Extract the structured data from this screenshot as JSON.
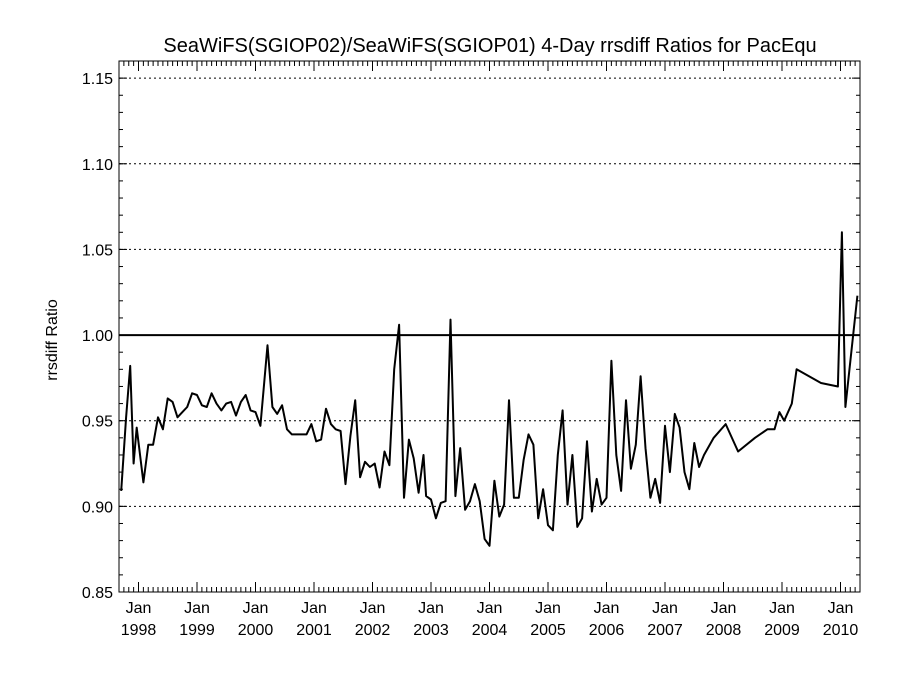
{
  "chart_data": {
    "type": "line",
    "title": "SeaWiFS(SGIOP02)/SeaWiFS(SGIOP01) 4-Day rrsdiff Ratios for PacEqu",
    "xlabel": "",
    "ylabel": "rrsdiff Ratio",
    "ylim": [
      0.85,
      1.16
    ],
    "xlim": [
      "1997-09",
      "2010-05"
    ],
    "yticks": [
      0.85,
      0.9,
      0.95,
      1.0,
      1.05,
      1.1,
      1.15
    ],
    "ytick_labels": [
      "0.85",
      "0.90",
      "0.95",
      "1.00",
      "1.05",
      "1.10",
      "1.15"
    ],
    "xticks": [
      {
        "month": "Jan",
        "year": "1998",
        "date": "1998-01"
      },
      {
        "month": "Jan",
        "year": "1999",
        "date": "1999-01"
      },
      {
        "month": "Jan",
        "year": "2000",
        "date": "2000-01"
      },
      {
        "month": "Jan",
        "year": "2001",
        "date": "2001-01"
      },
      {
        "month": "Jan",
        "year": "2002",
        "date": "2002-01"
      },
      {
        "month": "Jan",
        "year": "2003",
        "date": "2003-01"
      },
      {
        "month": "Jan",
        "year": "2004",
        "date": "2004-01"
      },
      {
        "month": "Jan",
        "year": "2005",
        "date": "2005-01"
      },
      {
        "month": "Jan",
        "year": "2006",
        "date": "2006-01"
      },
      {
        "month": "Jan",
        "year": "2007",
        "date": "2007-01"
      },
      {
        "month": "Jan",
        "year": "2008",
        "date": "2008-01"
      },
      {
        "month": "Jan",
        "year": "2009",
        "date": "2009-01"
      },
      {
        "month": "Jan",
        "year": "2010",
        "date": "2010-01"
      }
    ],
    "reference_line": 1.0,
    "grid": "horizontal dotted",
    "series": [
      {
        "data": [
          [
            "1997-09-15",
            0.909
          ],
          [
            "1997-10-15",
            0.952
          ],
          [
            "1997-11-10",
            0.982
          ],
          [
            "1997-12-01",
            0.925
          ],
          [
            "1997-12-20",
            0.946
          ],
          [
            "1998-02-01",
            0.914
          ],
          [
            "1998-03-01",
            0.936
          ],
          [
            "1998-04-01",
            0.936
          ],
          [
            "1998-05-01",
            0.952
          ],
          [
            "1998-06-01",
            0.945
          ],
          [
            "1998-07-01",
            0.963
          ],
          [
            "1998-08-01",
            0.961
          ],
          [
            "1998-09-01",
            0.952
          ],
          [
            "1998-10-01",
            0.955
          ],
          [
            "1998-11-01",
            0.958
          ],
          [
            "1998-12-01",
            0.966
          ],
          [
            "1999-01-01",
            0.965
          ],
          [
            "1999-02-01",
            0.959
          ],
          [
            "1999-03-01",
            0.958
          ],
          [
            "1999-04-01",
            0.966
          ],
          [
            "1999-05-01",
            0.96
          ],
          [
            "1999-06-01",
            0.956
          ],
          [
            "1999-07-01",
            0.96
          ],
          [
            "1999-08-01",
            0.961
          ],
          [
            "1999-09-01",
            0.953
          ],
          [
            "1999-10-01",
            0.961
          ],
          [
            "1999-11-01",
            0.965
          ],
          [
            "1999-12-01",
            0.956
          ],
          [
            "2000-01-01",
            0.955
          ],
          [
            "2000-02-01",
            0.947
          ],
          [
            "2000-03-15",
            0.994
          ],
          [
            "2000-04-15",
            0.958
          ],
          [
            "2000-05-15",
            0.954
          ],
          [
            "2000-06-15",
            0.959
          ],
          [
            "2000-07-15",
            0.945
          ],
          [
            "2000-08-15",
            0.942
          ],
          [
            "2000-10-01",
            0.942
          ],
          [
            "2000-11-15",
            0.942
          ],
          [
            "2000-12-15",
            0.948
          ],
          [
            "2001-01-15",
            0.938
          ],
          [
            "2001-02-15",
            0.939
          ],
          [
            "2001-03-15",
            0.957
          ],
          [
            "2001-04-15",
            0.948
          ],
          [
            "2001-05-15",
            0.945
          ],
          [
            "2001-06-15",
            0.944
          ],
          [
            "2001-07-15",
            0.913
          ],
          [
            "2001-08-15",
            0.941
          ],
          [
            "2001-09-15",
            0.962
          ],
          [
            "2001-10-15",
            0.917
          ],
          [
            "2001-11-15",
            0.926
          ],
          [
            "2001-12-15",
            0.923
          ],
          [
            "2002-01-15",
            0.925
          ],
          [
            "2002-02-15",
            0.911
          ],
          [
            "2002-03-15",
            0.932
          ],
          [
            "2002-04-15",
            0.924
          ],
          [
            "2002-05-15",
            0.98
          ],
          [
            "2002-06-15",
            1.006
          ],
          [
            "2002-07-15",
            0.905
          ],
          [
            "2002-08-15",
            0.939
          ],
          [
            "2002-09-15",
            0.928
          ],
          [
            "2002-10-15",
            0.908
          ],
          [
            "2002-11-15",
            0.93
          ],
          [
            "2002-12-01",
            0.906
          ],
          [
            "2003-01-01",
            0.904
          ],
          [
            "2003-02-01",
            0.893
          ],
          [
            "2003-03-01",
            0.902
          ],
          [
            "2003-04-01",
            0.903
          ],
          [
            "2003-05-01",
            1.009
          ],
          [
            "2003-06-01",
            0.906
          ],
          [
            "2003-07-01",
            0.934
          ],
          [
            "2003-08-01",
            0.898
          ],
          [
            "2003-09-01",
            0.903
          ],
          [
            "2003-10-01",
            0.913
          ],
          [
            "2003-11-01",
            0.903
          ],
          [
            "2003-12-01",
            0.881
          ],
          [
            "2004-01-01",
            0.877
          ],
          [
            "2004-02-01",
            0.915
          ],
          [
            "2004-03-01",
            0.894
          ],
          [
            "2004-04-01",
            0.901
          ],
          [
            "2004-05-01",
            0.962
          ],
          [
            "2004-06-01",
            0.905
          ],
          [
            "2004-07-01",
            0.905
          ],
          [
            "2004-08-01",
            0.927
          ],
          [
            "2004-09-01",
            0.942
          ],
          [
            "2004-10-01",
            0.936
          ],
          [
            "2004-11-01",
            0.893
          ],
          [
            "2004-12-01",
            0.91
          ],
          [
            "2005-01-01",
            0.889
          ],
          [
            "2005-02-01",
            0.886
          ],
          [
            "2005-03-01",
            0.93
          ],
          [
            "2005-04-01",
            0.956
          ],
          [
            "2005-05-01",
            0.901
          ],
          [
            "2005-06-01",
            0.93
          ],
          [
            "2005-07-01",
            0.888
          ],
          [
            "2005-08-01",
            0.893
          ],
          [
            "2005-09-01",
            0.938
          ],
          [
            "2005-10-01",
            0.897
          ],
          [
            "2005-11-01",
            0.916
          ],
          [
            "2005-12-01",
            0.901
          ],
          [
            "2006-01-01",
            0.905
          ],
          [
            "2006-02-01",
            0.985
          ],
          [
            "2006-03-01",
            0.93
          ],
          [
            "2006-04-01",
            0.909
          ],
          [
            "2006-05-01",
            0.962
          ],
          [
            "2006-06-01",
            0.922
          ],
          [
            "2006-07-01",
            0.936
          ],
          [
            "2006-08-01",
            0.976
          ],
          [
            "2006-09-01",
            0.934
          ],
          [
            "2006-10-01",
            0.905
          ],
          [
            "2006-11-01",
            0.916
          ],
          [
            "2006-12-01",
            0.902
          ],
          [
            "2007-01-01",
            0.947
          ],
          [
            "2007-02-01",
            0.92
          ],
          [
            "2007-03-01",
            0.954
          ],
          [
            "2007-04-01",
            0.946
          ],
          [
            "2007-05-01",
            0.92
          ],
          [
            "2007-06-01",
            0.91
          ],
          [
            "2007-07-01",
            0.937
          ],
          [
            "2007-08-01",
            0.923
          ],
          [
            "2007-09-01",
            0.93
          ],
          [
            "2007-11-01",
            0.94
          ],
          [
            "2008-01-15",
            0.948
          ],
          [
            "2008-04-01",
            0.932
          ],
          [
            "2008-07-15",
            0.94
          ],
          [
            "2008-10-01",
            0.945
          ],
          [
            "2008-11-15",
            0.945
          ],
          [
            "2008-12-15",
            0.955
          ],
          [
            "2009-01-15",
            0.95
          ],
          [
            "2009-03-01",
            0.96
          ],
          [
            "2009-04-01",
            0.98
          ],
          [
            "2009-09-01",
            0.972
          ],
          [
            "2009-12-15",
            0.97
          ],
          [
            "2010-01-10",
            1.06
          ],
          [
            "2010-02-01",
            0.958
          ],
          [
            "2010-04-15",
            1.023
          ]
        ]
      }
    ]
  }
}
